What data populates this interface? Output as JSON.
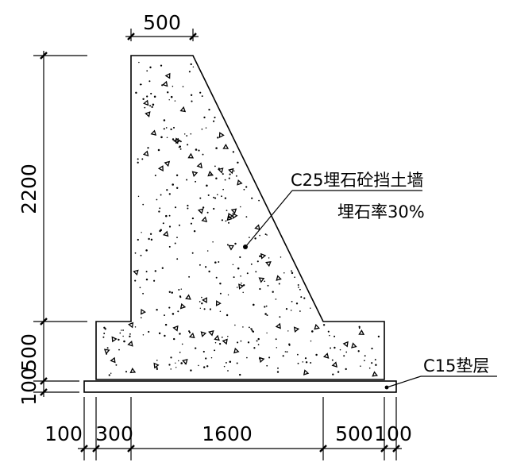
{
  "dimensions": {
    "top_width": "500",
    "wall_height": "2200",
    "footing_thickness": "500",
    "cushion_thickness": "100",
    "bottom": {
      "left_pad": "100",
      "toe": "300",
      "base": "1600",
      "heel": "500",
      "right_pad": "100"
    }
  },
  "annotations": {
    "wall_material": "C25埋石砼挡土墙",
    "stone_ratio": "埋石率30%",
    "cushion_material": "C15垫层"
  }
}
